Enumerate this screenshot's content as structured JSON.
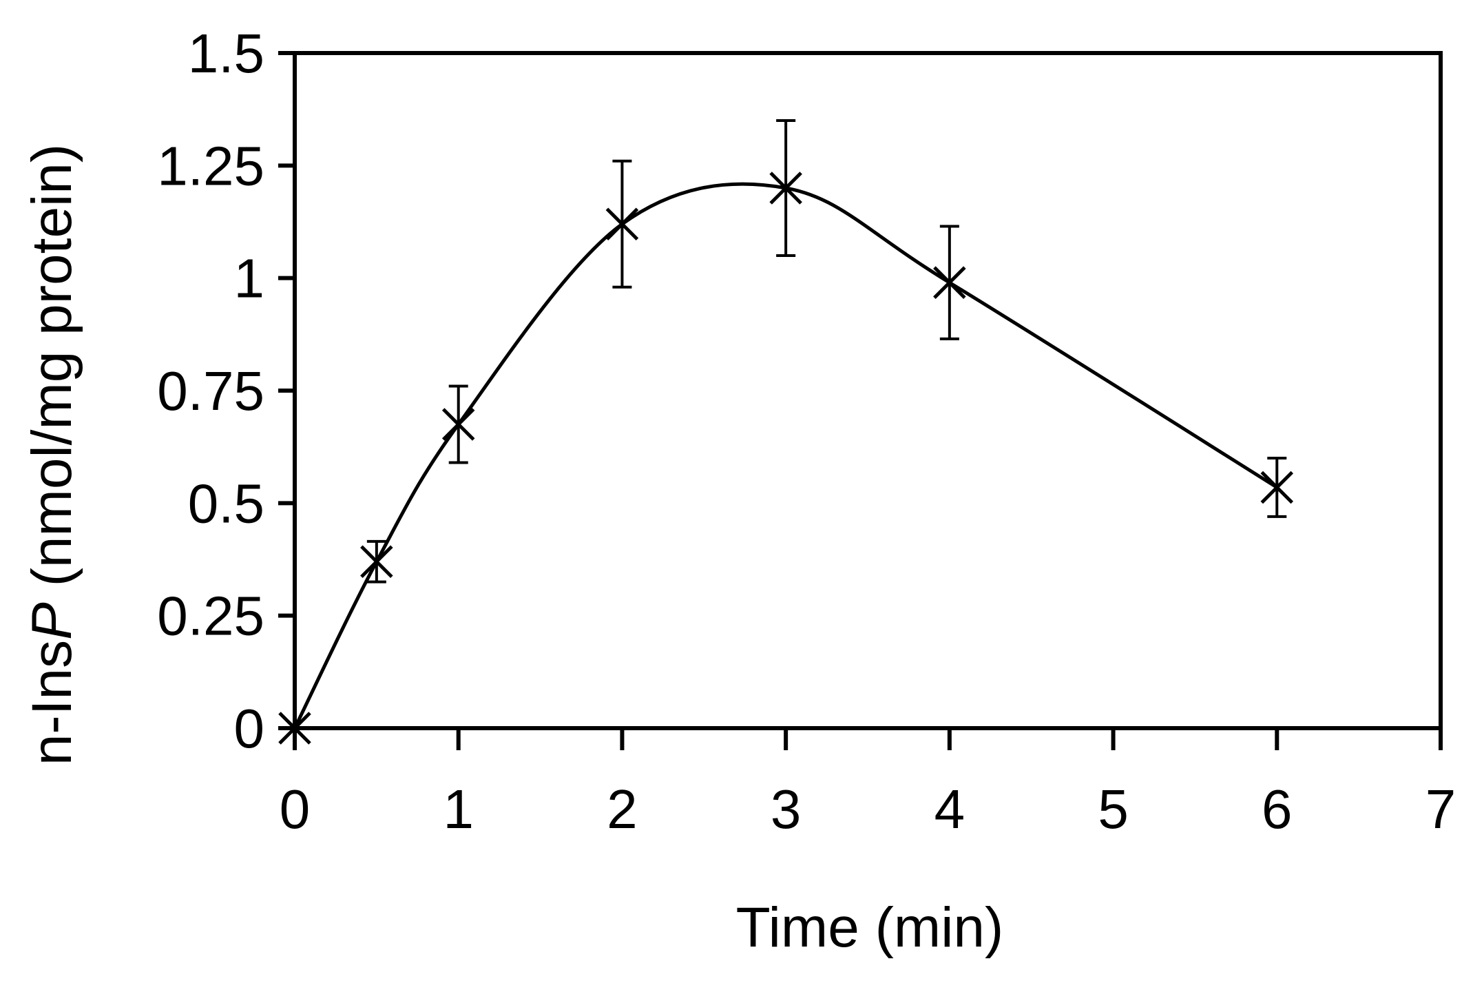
{
  "chart_data": {
    "type": "line",
    "title": "",
    "xlabel": "Time (min)",
    "ylabel_prefix": "n-Ins",
    "ylabel_italic": "P",
    "ylabel_suffix": " (nmol/mg protein)",
    "xlim": [
      0,
      7
    ],
    "ylim": [
      0,
      1.5
    ],
    "x_ticks": [
      0,
      1,
      2,
      3,
      4,
      5,
      6,
      7
    ],
    "x_tick_labels": [
      "0",
      "1",
      "2",
      "3",
      "4",
      "5",
      "6",
      "7"
    ],
    "y_ticks": [
      0,
      0.25,
      0.5,
      0.75,
      1,
      1.25,
      1.5
    ],
    "y_tick_labels": [
      "0",
      "0.25",
      "0.5",
      "0.75",
      "1",
      "1.25",
      "1.5"
    ],
    "grid": false,
    "legend": "none",
    "marker": "x",
    "line": "smooth",
    "color": "#000000",
    "series": [
      {
        "x": [
          0,
          0.5,
          1,
          2,
          3,
          4,
          6
        ],
        "y": [
          0,
          0.37,
          0.675,
          1.12,
          1.2,
          0.99,
          0.535
        ],
        "error": [
          0,
          0.045,
          0.085,
          0.14,
          0.15,
          0.125,
          0.065
        ]
      }
    ]
  }
}
